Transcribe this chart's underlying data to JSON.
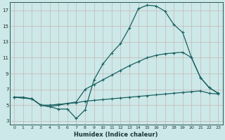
{
  "xlabel": "Humidex (Indice chaleur)",
  "bg_color": "#cce8e8",
  "grid_color_major": "#b0c8c8",
  "grid_color_minor": "#d4e8e4",
  "line_color": "#1a6060",
  "xlim": [
    -0.5,
    23.5
  ],
  "ylim": [
    2.5,
    18.0
  ],
  "yticks": [
    3,
    5,
    7,
    9,
    11,
    13,
    15,
    17
  ],
  "xticks": [
    0,
    1,
    2,
    3,
    4,
    5,
    6,
    7,
    8,
    9,
    10,
    11,
    12,
    13,
    14,
    15,
    16,
    17,
    18,
    19,
    20,
    21,
    22,
    23
  ],
  "curve1_x": [
    0,
    1,
    2,
    3,
    4,
    5,
    6,
    7,
    8,
    9,
    10,
    11,
    12,
    13,
    14,
    15,
    16,
    17,
    18,
    19,
    20,
    21,
    22,
    23
  ],
  "curve1_y": [
    6,
    6,
    5.8,
    5.0,
    4.8,
    4.5,
    4.5,
    3.3,
    4.4,
    8.2,
    10.2,
    11.6,
    12.8,
    14.8,
    17.2,
    17.65,
    17.55,
    16.9,
    15.2,
    14.2,
    11.0,
    8.5,
    7.2,
    6.5
  ],
  "curve2_x": [
    0,
    2,
    3,
    4,
    5,
    6,
    7,
    8,
    9,
    10,
    11,
    12,
    13,
    14,
    15,
    16,
    17,
    18,
    19,
    20,
    21,
    22,
    23
  ],
  "curve2_y": [
    6.0,
    5.8,
    5.0,
    4.8,
    5.0,
    5.2,
    5.4,
    7.0,
    7.6,
    8.2,
    8.8,
    9.4,
    10.0,
    10.5,
    11.0,
    11.3,
    11.5,
    11.6,
    11.7,
    11.0,
    8.5,
    7.2,
    6.5
  ],
  "curve3_x": [
    0,
    2,
    3,
    4,
    5,
    6,
    7,
    8,
    9,
    10,
    11,
    12,
    13,
    14,
    15,
    16,
    17,
    18,
    19,
    20,
    21,
    22,
    23
  ],
  "curve3_y": [
    6.0,
    5.8,
    5.0,
    5.0,
    5.1,
    5.2,
    5.3,
    5.5,
    5.6,
    5.7,
    5.8,
    5.9,
    6.0,
    6.1,
    6.2,
    6.3,
    6.4,
    6.5,
    6.6,
    6.7,
    6.8,
    6.5,
    6.4
  ]
}
